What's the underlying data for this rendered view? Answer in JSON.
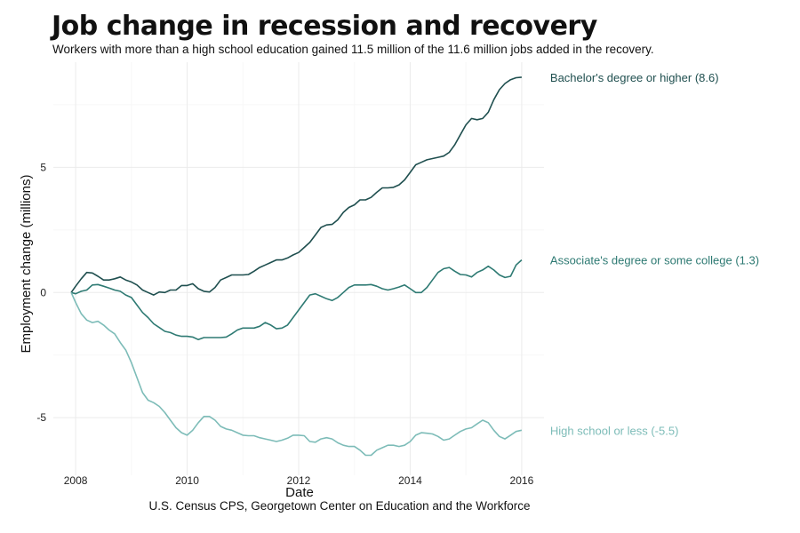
{
  "chart_data": {
    "type": "line",
    "title": "Job change in recession and recovery",
    "subtitle": "Workers with more than a high school education gained 11.5 million of the 11.6 million jobs added in the recovery.",
    "xlabel": "Date",
    "ylabel": "Employment change (millions)",
    "caption": "U.S. Census CPS, Georgetown Center on Education and the Workforce",
    "xlim": [
      2007.6,
      2016.4
    ],
    "ylim": [
      -7.3,
      9.2
    ],
    "x_ticks": [
      2008,
      2010,
      2012,
      2014,
      2016
    ],
    "y_ticks": [
      -5,
      0,
      5
    ],
    "grid": true,
    "legend": "direct labels at line ends",
    "series": [
      {
        "name": "Bachelor's degree or higher (8.6)",
        "color": "#1f4f4f",
        "points": [
          [
            2007.92,
            0
          ],
          [
            2008.0,
            0.25
          ],
          [
            2008.1,
            0.55
          ],
          [
            2008.2,
            0.8
          ],
          [
            2008.3,
            0.78
          ],
          [
            2008.4,
            0.65
          ],
          [
            2008.5,
            0.5
          ],
          [
            2008.6,
            0.5
          ],
          [
            2008.7,
            0.55
          ],
          [
            2008.8,
            0.62
          ],
          [
            2008.9,
            0.5
          ],
          [
            2009.0,
            0.42
          ],
          [
            2009.1,
            0.3
          ],
          [
            2009.2,
            0.1
          ],
          [
            2009.3,
            0.0
          ],
          [
            2009.4,
            -0.1
          ],
          [
            2009.5,
            0.02
          ],
          [
            2009.6,
            0.0
          ],
          [
            2009.7,
            0.1
          ],
          [
            2009.8,
            0.1
          ],
          [
            2009.9,
            0.28
          ],
          [
            2010.0,
            0.28
          ],
          [
            2010.1,
            0.35
          ],
          [
            2010.2,
            0.15
          ],
          [
            2010.3,
            0.05
          ],
          [
            2010.4,
            0.02
          ],
          [
            2010.5,
            0.2
          ],
          [
            2010.6,
            0.5
          ],
          [
            2010.7,
            0.6
          ],
          [
            2010.8,
            0.7
          ],
          [
            2010.9,
            0.7
          ],
          [
            2011.0,
            0.7
          ],
          [
            2011.1,
            0.72
          ],
          [
            2011.2,
            0.85
          ],
          [
            2011.3,
            1.0
          ],
          [
            2011.4,
            1.1
          ],
          [
            2011.5,
            1.2
          ],
          [
            2011.6,
            1.3
          ],
          [
            2011.7,
            1.3
          ],
          [
            2011.8,
            1.38
          ],
          [
            2011.9,
            1.5
          ],
          [
            2012.0,
            1.6
          ],
          [
            2012.1,
            1.8
          ],
          [
            2012.2,
            2.0
          ],
          [
            2012.3,
            2.3
          ],
          [
            2012.4,
            2.6
          ],
          [
            2012.5,
            2.7
          ],
          [
            2012.6,
            2.72
          ],
          [
            2012.7,
            2.9
          ],
          [
            2012.8,
            3.2
          ],
          [
            2012.9,
            3.4
          ],
          [
            2013.0,
            3.5
          ],
          [
            2013.1,
            3.7
          ],
          [
            2013.2,
            3.7
          ],
          [
            2013.3,
            3.8
          ],
          [
            2013.4,
            4.0
          ],
          [
            2013.5,
            4.18
          ],
          [
            2013.6,
            4.18
          ],
          [
            2013.7,
            4.2
          ],
          [
            2013.8,
            4.3
          ],
          [
            2013.9,
            4.5
          ],
          [
            2014.0,
            4.8
          ],
          [
            2014.1,
            5.1
          ],
          [
            2014.2,
            5.2
          ],
          [
            2014.3,
            5.3
          ],
          [
            2014.4,
            5.35
          ],
          [
            2014.5,
            5.4
          ],
          [
            2014.6,
            5.45
          ],
          [
            2014.7,
            5.6
          ],
          [
            2014.8,
            5.9
          ],
          [
            2014.9,
            6.3
          ],
          [
            2015.0,
            6.7
          ],
          [
            2015.1,
            6.95
          ],
          [
            2015.2,
            6.9
          ],
          [
            2015.3,
            6.95
          ],
          [
            2015.4,
            7.2
          ],
          [
            2015.5,
            7.7
          ],
          [
            2015.6,
            8.1
          ],
          [
            2015.7,
            8.35
          ],
          [
            2015.8,
            8.5
          ],
          [
            2015.9,
            8.58
          ],
          [
            2016.0,
            8.6
          ]
        ]
      },
      {
        "name": "Associate's degree or some college (1.3)",
        "color": "#2e7a73",
        "points": [
          [
            2007.92,
            0
          ],
          [
            2008.0,
            -0.05
          ],
          [
            2008.1,
            0.05
          ],
          [
            2008.2,
            0.1
          ],
          [
            2008.3,
            0.3
          ],
          [
            2008.4,
            0.32
          ],
          [
            2008.5,
            0.25
          ],
          [
            2008.6,
            0.18
          ],
          [
            2008.7,
            0.1
          ],
          [
            2008.8,
            0.05
          ],
          [
            2008.9,
            -0.1
          ],
          [
            2009.0,
            -0.2
          ],
          [
            2009.1,
            -0.5
          ],
          [
            2009.2,
            -0.8
          ],
          [
            2009.3,
            -1.0
          ],
          [
            2009.4,
            -1.25
          ],
          [
            2009.5,
            -1.4
          ],
          [
            2009.6,
            -1.55
          ],
          [
            2009.7,
            -1.6
          ],
          [
            2009.8,
            -1.7
          ],
          [
            2009.9,
            -1.75
          ],
          [
            2010.0,
            -1.75
          ],
          [
            2010.1,
            -1.78
          ],
          [
            2010.2,
            -1.88
          ],
          [
            2010.3,
            -1.8
          ],
          [
            2010.4,
            -1.8
          ],
          [
            2010.5,
            -1.8
          ],
          [
            2010.6,
            -1.8
          ],
          [
            2010.7,
            -1.78
          ],
          [
            2010.8,
            -1.65
          ],
          [
            2010.9,
            -1.5
          ],
          [
            2011.0,
            -1.42
          ],
          [
            2011.1,
            -1.42
          ],
          [
            2011.2,
            -1.42
          ],
          [
            2011.3,
            -1.35
          ],
          [
            2011.4,
            -1.2
          ],
          [
            2011.5,
            -1.3
          ],
          [
            2011.6,
            -1.45
          ],
          [
            2011.7,
            -1.42
          ],
          [
            2011.8,
            -1.3
          ],
          [
            2011.9,
            -1.0
          ],
          [
            2012.0,
            -0.7
          ],
          [
            2012.1,
            -0.4
          ],
          [
            2012.2,
            -0.1
          ],
          [
            2012.3,
            -0.05
          ],
          [
            2012.4,
            -0.15
          ],
          [
            2012.5,
            -0.25
          ],
          [
            2012.6,
            -0.32
          ],
          [
            2012.7,
            -0.2
          ],
          [
            2012.8,
            0.0
          ],
          [
            2012.9,
            0.2
          ],
          [
            2013.0,
            0.3
          ],
          [
            2013.1,
            0.3
          ],
          [
            2013.2,
            0.3
          ],
          [
            2013.3,
            0.32
          ],
          [
            2013.4,
            0.25
          ],
          [
            2013.5,
            0.15
          ],
          [
            2013.6,
            0.1
          ],
          [
            2013.7,
            0.15
          ],
          [
            2013.8,
            0.22
          ],
          [
            2013.9,
            0.3
          ],
          [
            2014.0,
            0.15
          ],
          [
            2014.1,
            0.0
          ],
          [
            2014.2,
            0.0
          ],
          [
            2014.3,
            0.2
          ],
          [
            2014.4,
            0.5
          ],
          [
            2014.5,
            0.8
          ],
          [
            2014.6,
            0.95
          ],
          [
            2014.7,
            1.0
          ],
          [
            2014.8,
            0.85
          ],
          [
            2014.9,
            0.72
          ],
          [
            2015.0,
            0.7
          ],
          [
            2015.1,
            0.62
          ],
          [
            2015.2,
            0.8
          ],
          [
            2015.3,
            0.9
          ],
          [
            2015.4,
            1.05
          ],
          [
            2015.5,
            0.9
          ],
          [
            2015.6,
            0.7
          ],
          [
            2015.7,
            0.6
          ],
          [
            2015.8,
            0.65
          ],
          [
            2015.9,
            1.1
          ],
          [
            2016.0,
            1.3
          ]
        ]
      },
      {
        "name": "High school or less (-5.5)",
        "color": "#7dbcb8",
        "points": [
          [
            2007.92,
            0
          ],
          [
            2008.0,
            -0.4
          ],
          [
            2008.1,
            -0.85
          ],
          [
            2008.2,
            -1.1
          ],
          [
            2008.3,
            -1.2
          ],
          [
            2008.4,
            -1.15
          ],
          [
            2008.5,
            -1.3
          ],
          [
            2008.6,
            -1.5
          ],
          [
            2008.7,
            -1.65
          ],
          [
            2008.8,
            -2.0
          ],
          [
            2008.9,
            -2.3
          ],
          [
            2009.0,
            -2.8
          ],
          [
            2009.1,
            -3.4
          ],
          [
            2009.2,
            -4.0
          ],
          [
            2009.3,
            -4.3
          ],
          [
            2009.4,
            -4.4
          ],
          [
            2009.5,
            -4.55
          ],
          [
            2009.6,
            -4.8
          ],
          [
            2009.7,
            -5.1
          ],
          [
            2009.8,
            -5.4
          ],
          [
            2009.9,
            -5.6
          ],
          [
            2010.0,
            -5.7
          ],
          [
            2010.1,
            -5.5
          ],
          [
            2010.2,
            -5.2
          ],
          [
            2010.3,
            -4.95
          ],
          [
            2010.4,
            -4.95
          ],
          [
            2010.5,
            -5.1
          ],
          [
            2010.6,
            -5.35
          ],
          [
            2010.7,
            -5.45
          ],
          [
            2010.8,
            -5.5
          ],
          [
            2010.9,
            -5.6
          ],
          [
            2011.0,
            -5.7
          ],
          [
            2011.1,
            -5.72
          ],
          [
            2011.2,
            -5.72
          ],
          [
            2011.3,
            -5.8
          ],
          [
            2011.4,
            -5.85
          ],
          [
            2011.5,
            -5.9
          ],
          [
            2011.6,
            -5.95
          ],
          [
            2011.7,
            -5.9
          ],
          [
            2011.8,
            -5.82
          ],
          [
            2011.9,
            -5.7
          ],
          [
            2012.0,
            -5.7
          ],
          [
            2012.1,
            -5.72
          ],
          [
            2012.2,
            -5.95
          ],
          [
            2012.3,
            -5.98
          ],
          [
            2012.4,
            -5.85
          ],
          [
            2012.5,
            -5.8
          ],
          [
            2012.6,
            -5.85
          ],
          [
            2012.7,
            -6.0
          ],
          [
            2012.8,
            -6.1
          ],
          [
            2012.9,
            -6.15
          ],
          [
            2013.0,
            -6.15
          ],
          [
            2013.1,
            -6.3
          ],
          [
            2013.2,
            -6.5
          ],
          [
            2013.3,
            -6.5
          ],
          [
            2013.4,
            -6.3
          ],
          [
            2013.5,
            -6.2
          ],
          [
            2013.6,
            -6.1
          ],
          [
            2013.7,
            -6.1
          ],
          [
            2013.8,
            -6.15
          ],
          [
            2013.9,
            -6.1
          ],
          [
            2014.0,
            -5.95
          ],
          [
            2014.1,
            -5.7
          ],
          [
            2014.2,
            -5.6
          ],
          [
            2014.3,
            -5.62
          ],
          [
            2014.4,
            -5.65
          ],
          [
            2014.5,
            -5.75
          ],
          [
            2014.6,
            -5.9
          ],
          [
            2014.7,
            -5.85
          ],
          [
            2014.8,
            -5.7
          ],
          [
            2014.9,
            -5.55
          ],
          [
            2015.0,
            -5.45
          ],
          [
            2015.1,
            -5.4
          ],
          [
            2015.2,
            -5.25
          ],
          [
            2015.3,
            -5.1
          ],
          [
            2015.4,
            -5.2
          ],
          [
            2015.5,
            -5.5
          ],
          [
            2015.6,
            -5.75
          ],
          [
            2015.7,
            -5.85
          ],
          [
            2015.8,
            -5.7
          ],
          [
            2015.9,
            -5.55
          ],
          [
            2016.0,
            -5.5
          ]
        ]
      }
    ]
  }
}
